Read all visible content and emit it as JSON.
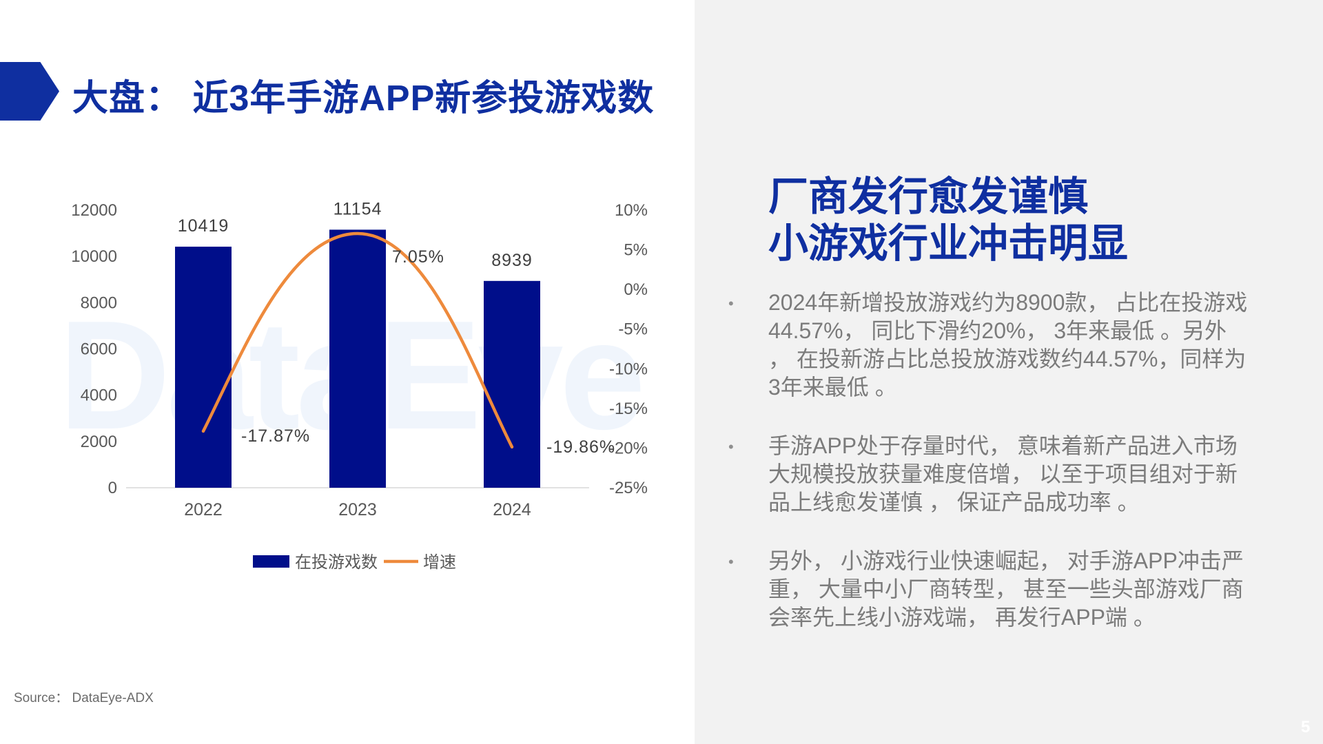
{
  "header": {
    "title": "大盘： 近3年手游APP新参投游戏数"
  },
  "watermark": "DataEye",
  "chart_data": {
    "type": "bar+line",
    "categories": [
      "2022",
      "2023",
      "2024"
    ],
    "series": [
      {
        "name": "在投游戏数",
        "type": "bar",
        "axis": "left",
        "color": "#000e8a",
        "values": [
          10419,
          11154,
          8939
        ],
        "labels": [
          "10419",
          "11154",
          "8939"
        ]
      },
      {
        "name": "增速",
        "type": "line",
        "axis": "right",
        "color": "#ee8a3c",
        "values": [
          -17.87,
          7.05,
          -19.86
        ],
        "labels": [
          "-17.87%",
          "7.05%",
          "-19.86%"
        ]
      }
    ],
    "y_left": {
      "min": 0,
      "max": 12000,
      "ticks": [
        "0",
        "2000",
        "4000",
        "6000",
        "8000",
        "10000",
        "12000"
      ]
    },
    "y_right": {
      "min": -25,
      "max": 10,
      "ticks": [
        "-25%",
        "-20%",
        "-15%",
        "-10%",
        "-5%",
        "0%",
        "5%",
        "10%"
      ]
    },
    "legend": {
      "position": "bottom"
    }
  },
  "right": {
    "headline_line1": "厂商发行愈发谨慎",
    "headline_line2": "小游戏行业冲击明显",
    "bullet_symbol": "•",
    "bullets": [
      " 2024年新增投放游戏约为8900款， 占比在投游戏44.57%， 同比下滑约20%， 3年来最低 。另外 ， 在投新游占比总投放游戏数约44.57%，同样为3年来最低 。",
      " 手游APP处于存量时代， 意味着新产品进入市场大规模投放获量难度倍增， 以至于项目组对于新品上线愈发谨慎 ， 保证产品成功率 。",
      " 另外， 小游戏行业快速崛起， 对手游APP冲击严重， 大量中小厂商转型， 甚至一些头部游戏厂商会率先上线小游戏端， 再发行APP端 。"
    ]
  },
  "footer": {
    "source": "Source： DataEye-ADX",
    "page_number": "5"
  }
}
